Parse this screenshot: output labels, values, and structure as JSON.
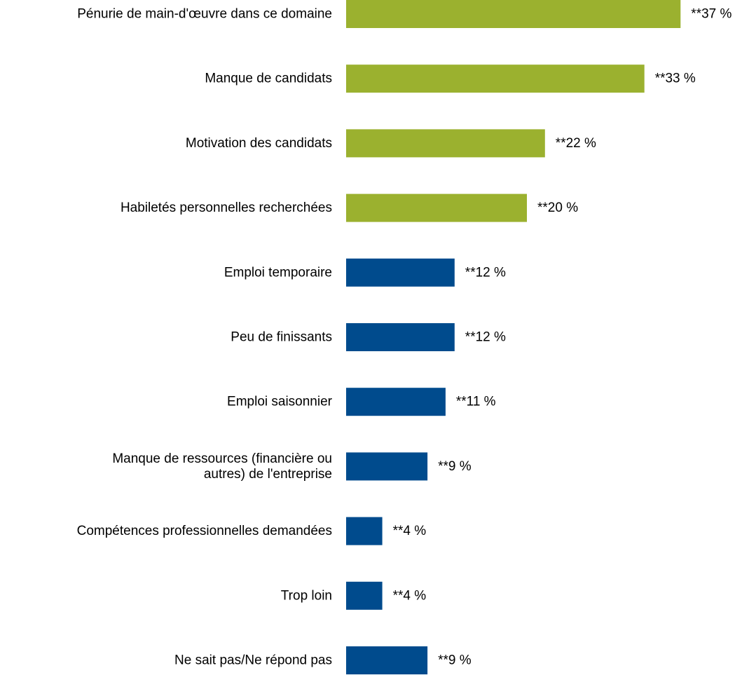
{
  "chart_data": {
    "type": "bar",
    "orientation": "horizontal",
    "categories": [
      "Pénurie de main-d'œuvre dans ce domaine",
      "Manque de candidats",
      "Motivation des candidats",
      "Habiletés personnelles recherchées",
      "Emploi temporaire",
      "Peu de finissants",
      "Emploi saisonnier",
      "Manque de ressources (financière ou autres) de l'entreprise",
      "Compétences professionnelles demandées",
      "Trop loin",
      "Ne sait pas/Ne répond pas"
    ],
    "category_lines": [
      [
        "Pénurie de main-d'œuvre dans ce domaine"
      ],
      [
        "Manque de candidats"
      ],
      [
        "Motivation des candidats"
      ],
      [
        "Habiletés personnelles recherchées"
      ],
      [
        "Emploi temporaire"
      ],
      [
        "Peu de finissants"
      ],
      [
        "Emploi saisonnier"
      ],
      [
        "Manque de ressources (financière ou",
        "autres) de l'entreprise"
      ],
      [
        "Compétences professionnelles demandées"
      ],
      [
        "Trop loin"
      ],
      [
        "Ne sait pas/Ne répond pas"
      ]
    ],
    "values": [
      37,
      33,
      22,
      20,
      12,
      12,
      11,
      9,
      4,
      4,
      9
    ],
    "value_labels": [
      "**37 %",
      "**33 %",
      "**22 %",
      "**20 %",
      "**12 %",
      "**12 %",
      "**11 %",
      "**9 %",
      "**4 %",
      "**4 %",
      "**9 %"
    ],
    "bar_colors": [
      "#9bb12f",
      "#9bb12f",
      "#9bb12f",
      "#9bb12f",
      "#004b8d",
      "#004b8d",
      "#004b8d",
      "#004b8d",
      "#004b8d",
      "#004b8d",
      "#004b8d"
    ],
    "unit": "%",
    "title": "",
    "xlabel": "",
    "ylabel": "",
    "xlim": [
      0,
      37
    ],
    "grid": false,
    "legend": "none"
  }
}
